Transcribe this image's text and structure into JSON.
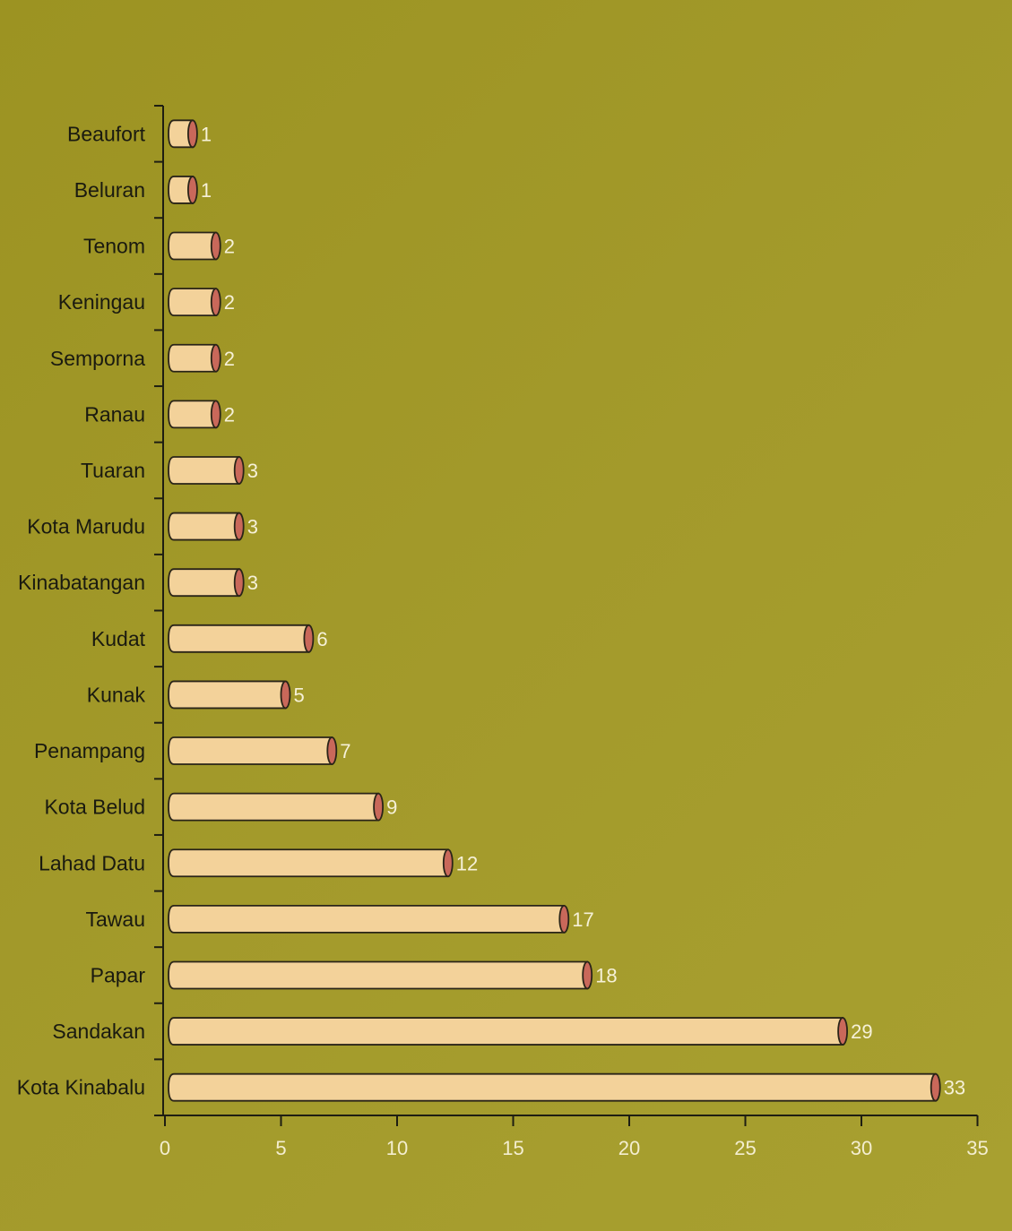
{
  "chart_data": {
    "type": "bar",
    "orientation": "horizontal",
    "categories": [
      "Beaufort",
      "Beluran",
      "Tenom",
      "Keningau",
      "Semporna",
      "Ranau",
      "Tuaran",
      "Kota Marudu",
      "Kinabatangan",
      "Kudat",
      "Kunak",
      "Penampang",
      "Kota Belud",
      "Lahad Datu",
      "Tawau",
      "Papar",
      "Sandakan",
      "Kota Kinabalu"
    ],
    "values": [
      1,
      1,
      2,
      2,
      2,
      2,
      3,
      3,
      3,
      6,
      5,
      7,
      9,
      12,
      17,
      18,
      29,
      33
    ],
    "data_labels": [
      "1",
      "1",
      "2",
      "2",
      "2",
      "2",
      "3",
      "3",
      "3",
      "6",
      "5",
      "7",
      "9",
      "12",
      "17",
      "18",
      "29",
      "33"
    ],
    "title": "",
    "xlabel": "",
    "ylabel": "",
    "xlim": [
      0,
      35
    ],
    "x_ticks": [
      0,
      5,
      10,
      15,
      20,
      25,
      30,
      35
    ],
    "x_tick_labels": [
      "0",
      "5",
      "10",
      "15",
      "20",
      "25",
      "30",
      "35"
    ],
    "grid": false,
    "legend": "none",
    "colors": {
      "background": "#a0972a",
      "bar_fill": "#f3d29a",
      "bar_cap": "#c9685a",
      "bar_outline": "#2a2418",
      "axis": "#1e1e12",
      "category_text": "#1a1a10",
      "value_text": "#f6f1d8"
    }
  }
}
